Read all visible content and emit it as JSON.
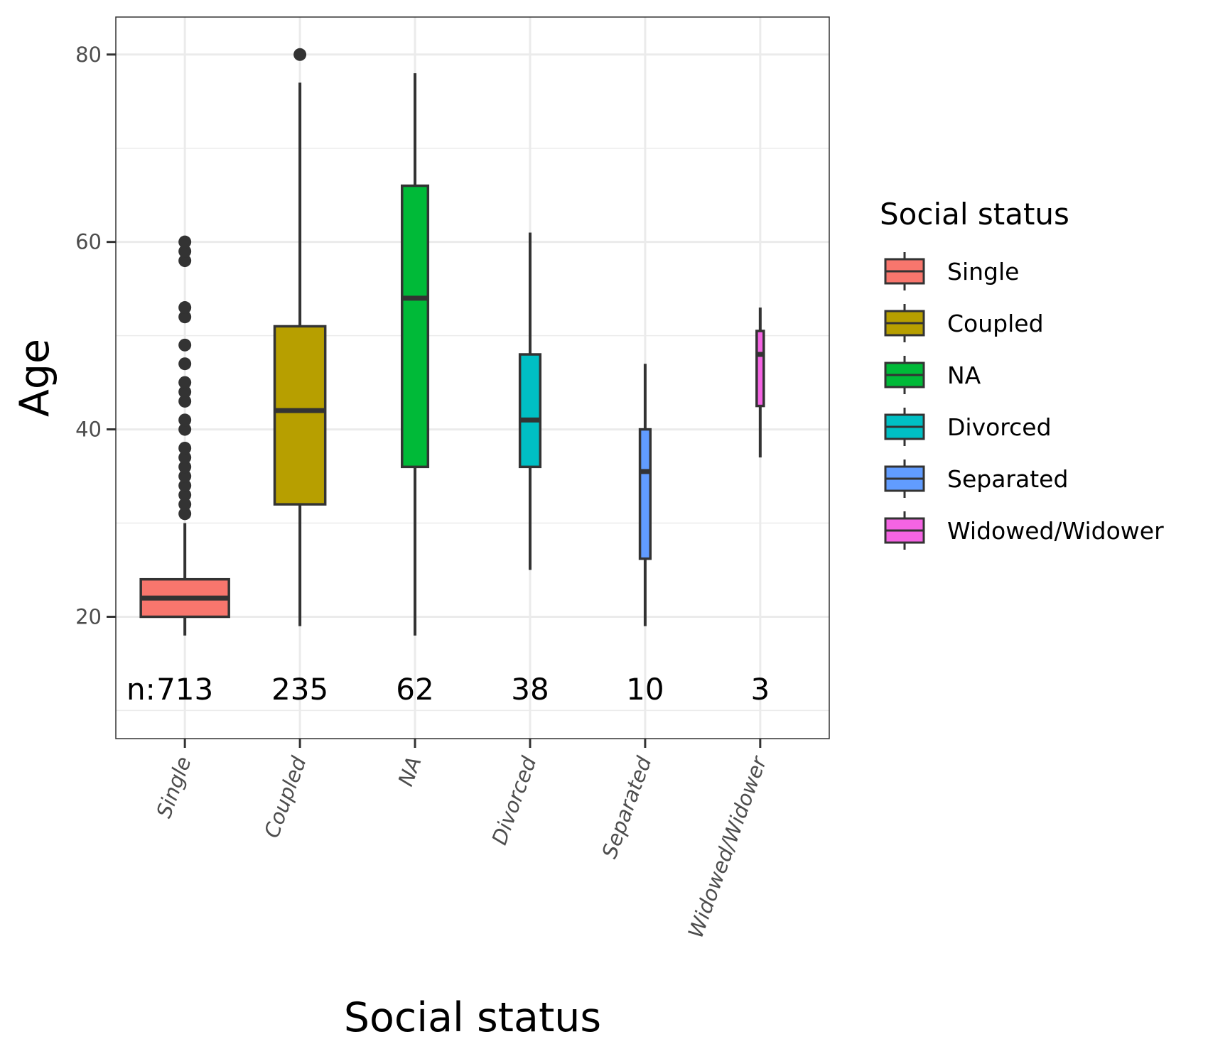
{
  "chart_data": {
    "type": "box",
    "xlabel": "Social status",
    "ylabel": "Age",
    "ylim": [
      7,
      84
    ],
    "yticks": [
      20,
      40,
      60,
      80
    ],
    "grid": true,
    "legend": {
      "title": "Social status",
      "placement": "right"
    },
    "n_prefix": "n:",
    "categories": [
      "Single",
      "Coupled",
      "NA",
      "Divorced",
      "Separated",
      "Widowed/Widower"
    ],
    "series": [
      {
        "name": "Single",
        "color": "#F8766D",
        "n": "713",
        "min": 18,
        "q1": 20,
        "median": 22,
        "q3": 24,
        "max": 30,
        "outliers": [
          31,
          32,
          33,
          34,
          35,
          36,
          37,
          38,
          40,
          41,
          43,
          44,
          45,
          47,
          49,
          52,
          53,
          58,
          59,
          60
        ]
      },
      {
        "name": "Coupled",
        "color": "#B79F00",
        "n": "235",
        "min": 19,
        "q1": 32,
        "median": 42,
        "q3": 51,
        "max": 77,
        "outliers": [
          80
        ]
      },
      {
        "name": "NA",
        "color": "#00BA38",
        "n": "62",
        "min": 18,
        "q1": 36,
        "median": 54,
        "q3": 66,
        "max": 78,
        "outliers": []
      },
      {
        "name": "Divorced",
        "color": "#00BFC4",
        "n": "38",
        "min": 25,
        "q1": 36,
        "median": 41,
        "q3": 48,
        "max": 61,
        "outliers": []
      },
      {
        "name": "Separated",
        "color": "#619CFF",
        "n": "10",
        "min": 19,
        "q1": 26.2,
        "median": 35.5,
        "q3": 40,
        "max": 47,
        "outliers": []
      },
      {
        "name": "Widowed/Widower",
        "color": "#F564E3",
        "n": "3",
        "min": 37,
        "q1": 42.5,
        "median": 48,
        "q3": 50.5,
        "max": 53,
        "outliers": []
      }
    ]
  }
}
